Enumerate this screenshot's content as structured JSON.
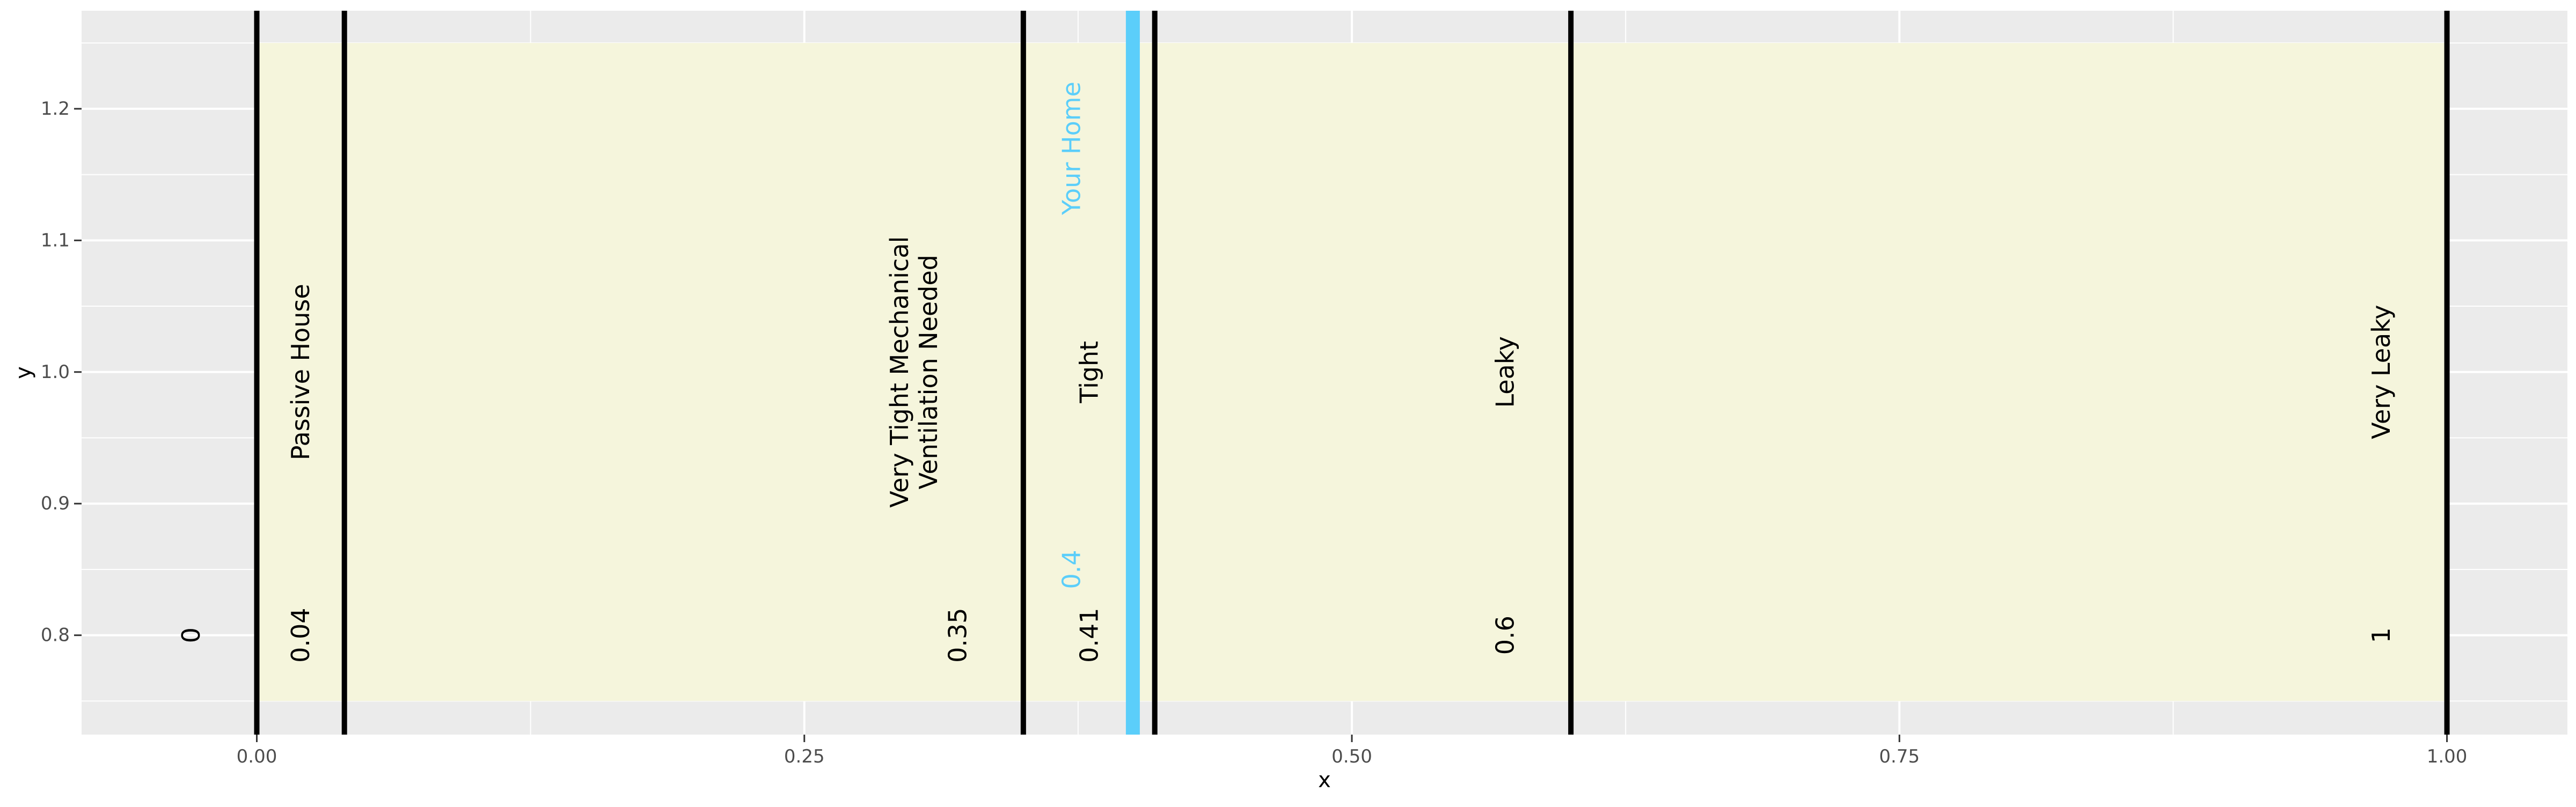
{
  "chart_data": {
    "type": "other",
    "xlabel": "x",
    "ylabel": "y",
    "xlim": [
      -0.08,
      1.055
    ],
    "ylim": [
      0.7245,
      1.2745
    ],
    "x_ticks": [
      {
        "value": 0.0,
        "label": "0.00"
      },
      {
        "value": 0.25,
        "label": "0.25"
      },
      {
        "value": 0.5,
        "label": "0.50"
      },
      {
        "value": 0.75,
        "label": "0.75"
      },
      {
        "value": 1.0,
        "label": "1.00"
      }
    ],
    "x_minor_ticks": [
      0.125,
      0.375,
      0.625,
      0.875
    ],
    "y_ticks": [
      {
        "value": 0.8,
        "label": "0.8"
      },
      {
        "value": 0.9,
        "label": "0.9"
      },
      {
        "value": 1.0,
        "label": "1.0"
      },
      {
        "value": 1.1,
        "label": "1.1"
      },
      {
        "value": 1.2,
        "label": "1.2"
      }
    ],
    "y_minor_ticks": [
      0.75,
      0.85,
      0.95,
      1.05,
      1.15,
      1.25
    ],
    "grid": true,
    "band": {
      "xmin": 0.0,
      "xmax": 1.0,
      "ymin": 0.75,
      "ymax": 1.25,
      "color": "#F5F5DC"
    },
    "boundaries": [
      {
        "x": 0.0,
        "value_label": "0",
        "value_label_x": -0.03,
        "category": "",
        "color": "#000000"
      },
      {
        "x": 0.04,
        "value_label": "0.04",
        "value_label_x": 0.02,
        "category": "Passive House",
        "category_x": 0.02,
        "color": "#000000"
      },
      {
        "x": 0.35,
        "value_label": "0.35",
        "value_label_x": 0.32,
        "category": "Very Tight Mechanical\nVentilation Needed",
        "category_x": 0.3,
        "color": "#000000"
      },
      {
        "x": 0.41,
        "value_label": "0.41",
        "value_label_x": 0.38,
        "category": "Tight",
        "category_x": 0.38,
        "color": "#000000"
      },
      {
        "x": 0.6,
        "value_label": "0.6",
        "value_label_x": 0.57,
        "category": "Leaky",
        "category_x": 0.57,
        "color": "#000000"
      },
      {
        "x": 1.0,
        "value_label": "1",
        "value_label_x": 0.97,
        "category": "Very Leaky",
        "category_x": 0.97,
        "color": "#000000"
      }
    ],
    "highlight": {
      "x": 0.4,
      "value_label": "0.4",
      "value_label_y": 0.85,
      "label": "Your Home",
      "label_y": 1.17,
      "label_x": 0.372,
      "color": "#5BCEFA"
    },
    "value_label_y": 0.8,
    "category_label_y": 1.0
  },
  "colors": {
    "panel_background": "#EBEBEB",
    "grid_line": "#FFFFFF",
    "tick_text": "#4D4D4D",
    "axis_title": "#000000"
  }
}
